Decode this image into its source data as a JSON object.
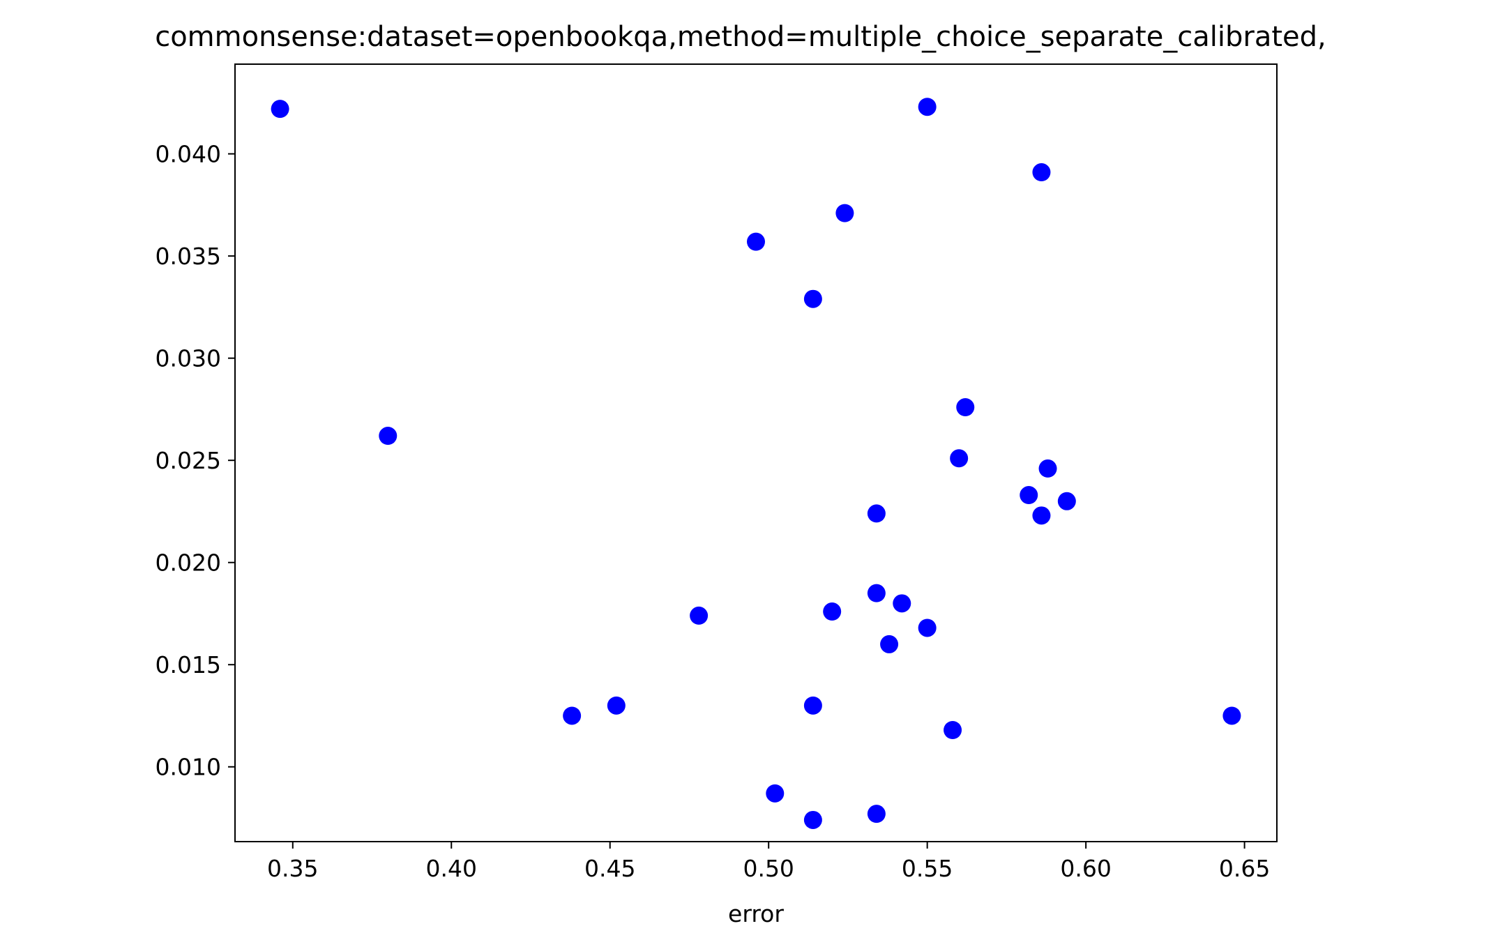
{
  "chart_data": {
    "type": "scatter",
    "title": "commonsense:dataset=openbookqa,method=multiple_choice_separate_calibrated,",
    "xlabel": "error",
    "ylabel": "",
    "xlim": [
      0.3318,
      0.6602
    ],
    "ylim": [
      0.00634,
      0.04439
    ],
    "x_ticks": [
      0.35,
      0.4,
      0.45,
      0.5,
      0.55,
      0.6,
      0.65
    ],
    "x_tick_labels": [
      "0.35",
      "0.40",
      "0.45",
      "0.50",
      "0.55",
      "0.60",
      "0.65"
    ],
    "y_ticks": [
      0.01,
      0.015,
      0.02,
      0.025,
      0.03,
      0.035,
      0.04
    ],
    "y_tick_labels": [
      "0.010",
      "0.015",
      "0.020",
      "0.025",
      "0.030",
      "0.035",
      "0.040"
    ],
    "grid": false,
    "legend": "none",
    "marker_color": "#0000ff",
    "points": [
      {
        "x": 0.346,
        "y": 0.0422
      },
      {
        "x": 0.38,
        "y": 0.0262
      },
      {
        "x": 0.438,
        "y": 0.0125
      },
      {
        "x": 0.452,
        "y": 0.013
      },
      {
        "x": 0.478,
        "y": 0.0174
      },
      {
        "x": 0.496,
        "y": 0.0357
      },
      {
        "x": 0.502,
        "y": 0.0087
      },
      {
        "x": 0.514,
        "y": 0.0329
      },
      {
        "x": 0.514,
        "y": 0.013
      },
      {
        "x": 0.514,
        "y": 0.0074
      },
      {
        "x": 0.52,
        "y": 0.0176
      },
      {
        "x": 0.524,
        "y": 0.0371
      },
      {
        "x": 0.534,
        "y": 0.0224
      },
      {
        "x": 0.534,
        "y": 0.0185
      },
      {
        "x": 0.534,
        "y": 0.0077
      },
      {
        "x": 0.538,
        "y": 0.016
      },
      {
        "x": 0.542,
        "y": 0.018
      },
      {
        "x": 0.55,
        "y": 0.0423
      },
      {
        "x": 0.55,
        "y": 0.0168
      },
      {
        "x": 0.558,
        "y": 0.0118
      },
      {
        "x": 0.56,
        "y": 0.0251
      },
      {
        "x": 0.562,
        "y": 0.0276
      },
      {
        "x": 0.582,
        "y": 0.0233
      },
      {
        "x": 0.586,
        "y": 0.0391
      },
      {
        "x": 0.586,
        "y": 0.0223
      },
      {
        "x": 0.588,
        "y": 0.0246
      },
      {
        "x": 0.594,
        "y": 0.023
      },
      {
        "x": 0.646,
        "y": 0.0125
      }
    ]
  }
}
